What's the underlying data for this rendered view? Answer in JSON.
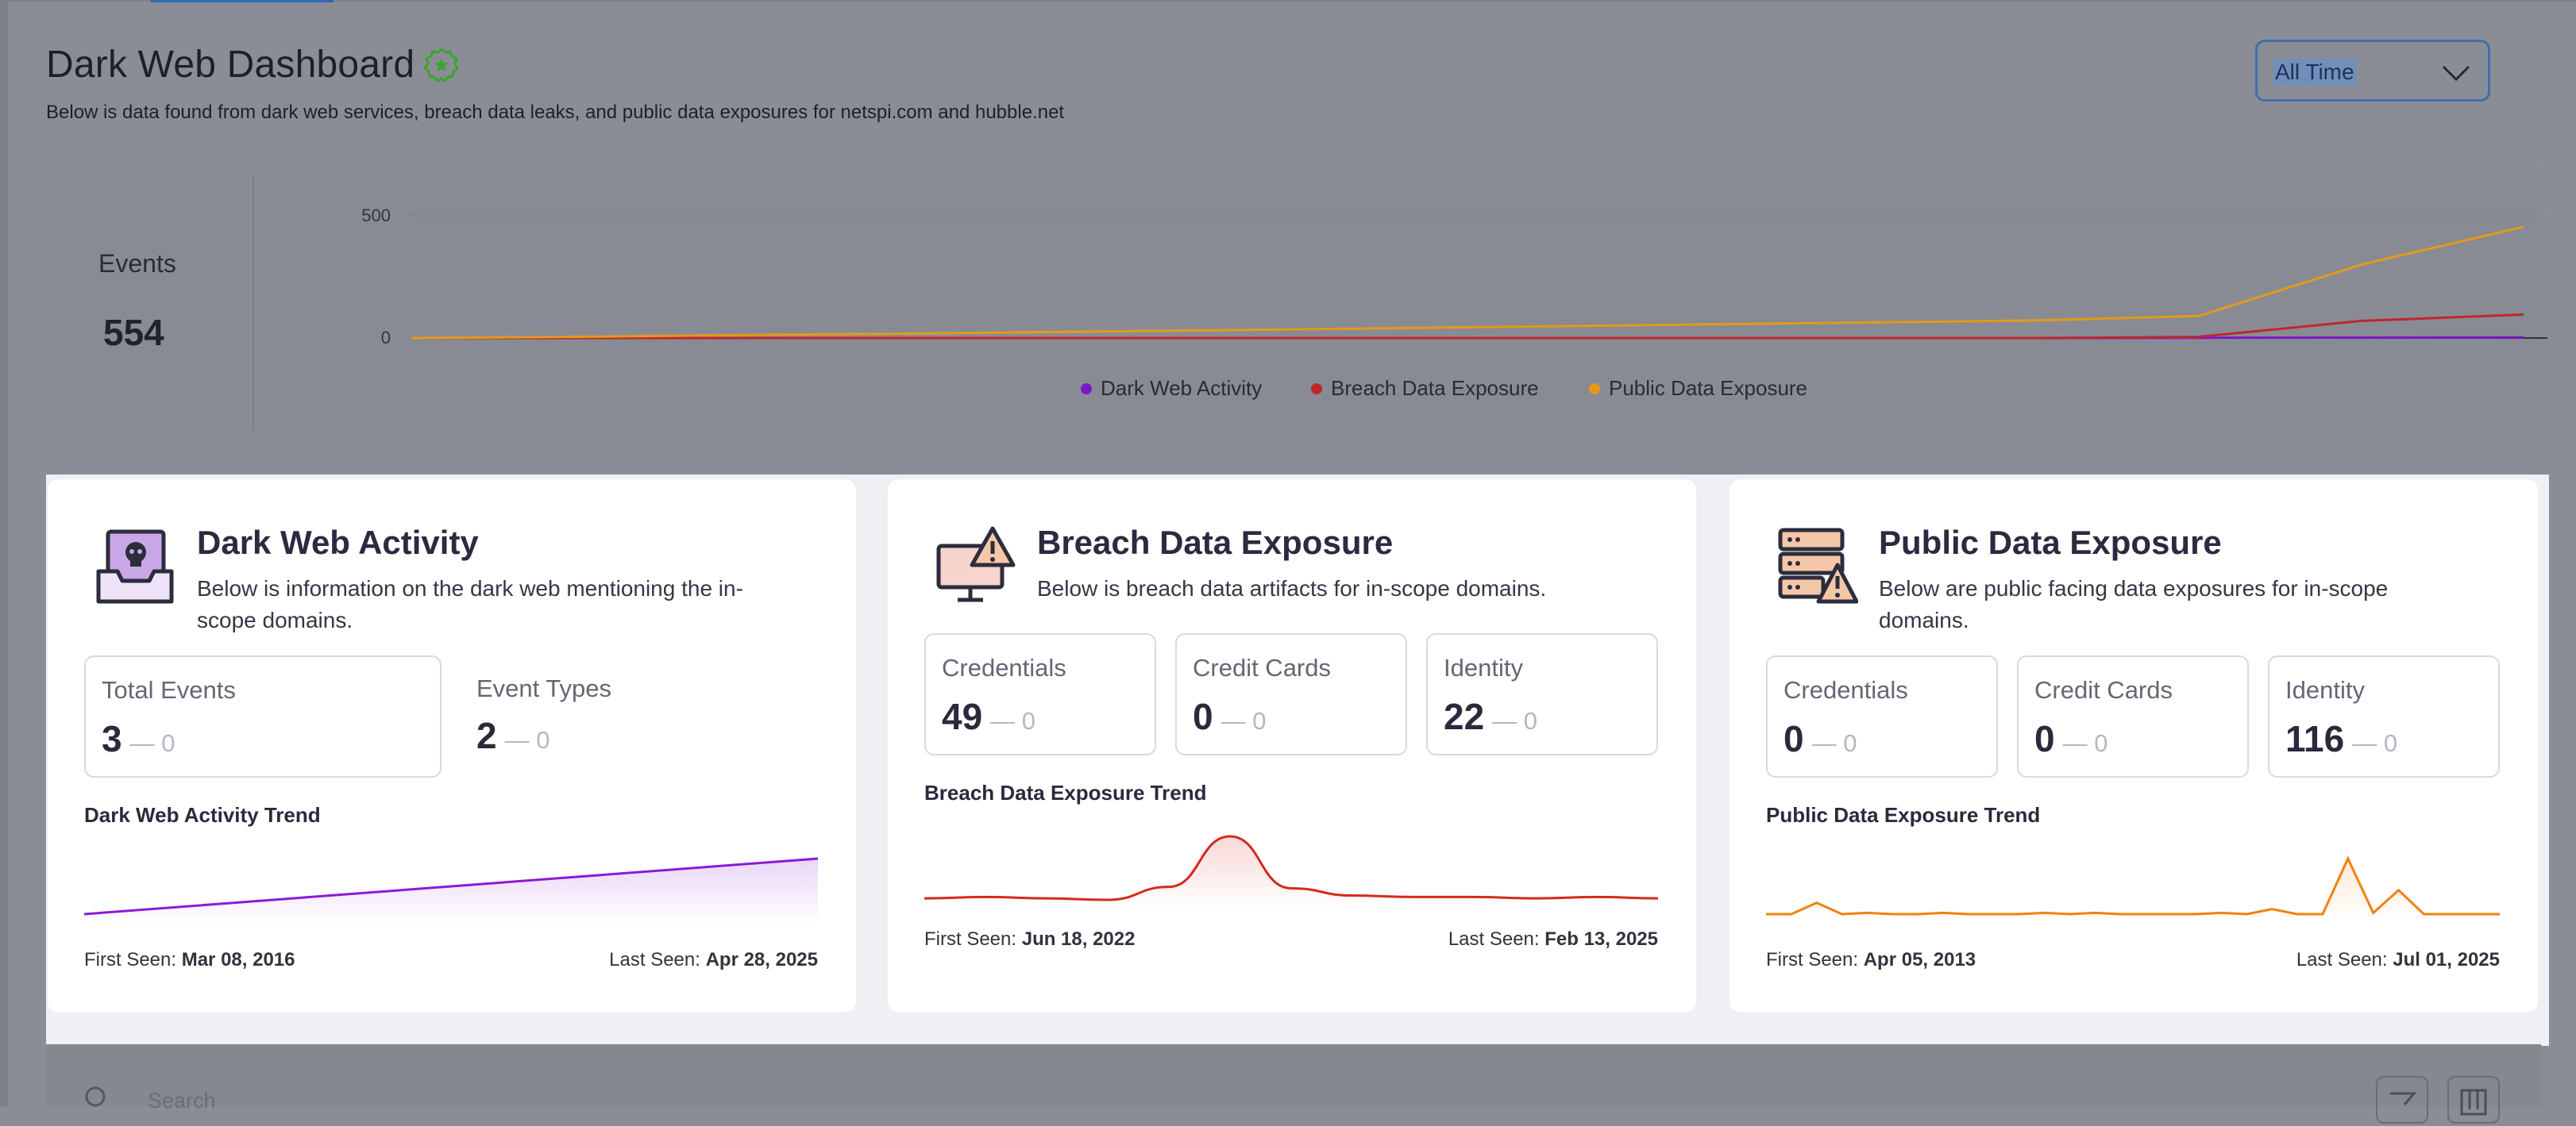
{
  "header": {
    "title": "Dark Web Dashboard",
    "subtitle": "Below is data found from dark web services, breach data leaks, and public data exposures for netspi.com and hubble.net",
    "range_select": {
      "value": "All Time"
    },
    "badge_icon": "verified-badge-icon"
  },
  "overview": {
    "events_label": "Events",
    "events_value": "554",
    "chart_data": {
      "type": "line",
      "y_ticks": [
        "500",
        "0"
      ],
      "ylim": [
        0,
        554
      ],
      "series": [
        {
          "name": "Dark Web Activity",
          "color": "#7b19c9",
          "values": [
            0,
            0,
            0,
            0,
            0,
            0,
            0,
            0,
            0,
            0,
            0,
            1,
            2,
            3
          ]
        },
        {
          "name": "Breach Data Exposure",
          "color": "#c0262d",
          "values": [
            0,
            0,
            0,
            0,
            0,
            0,
            0,
            0,
            0,
            0,
            0,
            5,
            70,
            96
          ]
        },
        {
          "name": "Public Data Exposure",
          "color": "#e39a1c",
          "values": [
            0,
            5,
            12,
            18,
            25,
            32,
            40,
            48,
            56,
            64,
            72,
            90,
            300,
            455
          ]
        }
      ],
      "legend_position": "bottom-center"
    }
  },
  "cards": {
    "dark_web": {
      "title": "Dark Web Activity",
      "description": "Below is information on the dark web mentioning the in-scope domains.",
      "icon": "inbox-skull-icon",
      "stats": [
        {
          "label": "Total Events",
          "value": "3",
          "delta": "— 0"
        },
        {
          "label": "Event Types",
          "value": "2",
          "delta": "— 0"
        }
      ],
      "trend_title": "Dark Web Activity Trend",
      "trend": {
        "color": "#8a1bd6",
        "values": [
          1,
          2,
          3
        ]
      },
      "first_seen_label": "First Seen:",
      "first_seen": "Mar 08, 2016",
      "last_seen_label": "Last Seen:",
      "last_seen": "Apr 28, 2025"
    },
    "breach": {
      "title": "Breach Data Exposure",
      "description": "Below is breach data artifacts for in-scope domains.",
      "icon": "monitor-warning-icon",
      "stats": [
        {
          "label": "Credentials",
          "value": "49",
          "delta": "— 0"
        },
        {
          "label": "Credit Cards",
          "value": "0",
          "delta": "— 0"
        },
        {
          "label": "Identity",
          "value": "22",
          "delta": "— 0"
        }
      ],
      "trend_title": "Breach Data Exposure Trend",
      "trend": {
        "color": "#d42a1c",
        "values": [
          2,
          3,
          2,
          1,
          10,
          45,
          9,
          4,
          3,
          3,
          2,
          3,
          2
        ]
      },
      "first_seen_label": "First Seen:",
      "first_seen": "Jun 18, 2022",
      "last_seen_label": "Last Seen:",
      "last_seen": "Feb 13, 2025"
    },
    "public": {
      "title": "Public Data Exposure",
      "description": "Below are public facing data exposures for in-scope domains.",
      "icon": "server-warning-icon",
      "stats": [
        {
          "label": "Credentials",
          "value": "0",
          "delta": "— 0"
        },
        {
          "label": "Credit Cards",
          "value": "0",
          "delta": "— 0"
        },
        {
          "label": "Identity",
          "value": "116",
          "delta": "— 0"
        }
      ],
      "trend_title": "Public Data Exposure Trend",
      "trend": {
        "color": "#f0820f",
        "values": [
          1,
          1,
          10,
          1,
          2,
          1,
          1,
          2,
          1,
          1,
          1,
          2,
          1,
          2,
          1,
          1,
          1,
          1,
          2,
          1,
          5,
          1,
          1,
          45,
          2,
          20,
          1,
          1,
          1,
          1
        ]
      },
      "first_seen_label": "First Seen:",
      "first_seen": "Apr 05, 2013",
      "last_seen_label": "Last Seen:",
      "last_seen": "Jul 01, 2025"
    }
  },
  "table_toolbar": {
    "search_placeholder": "Search",
    "filter_icon": "filter-icon",
    "columns_icon": "columns-icon"
  }
}
